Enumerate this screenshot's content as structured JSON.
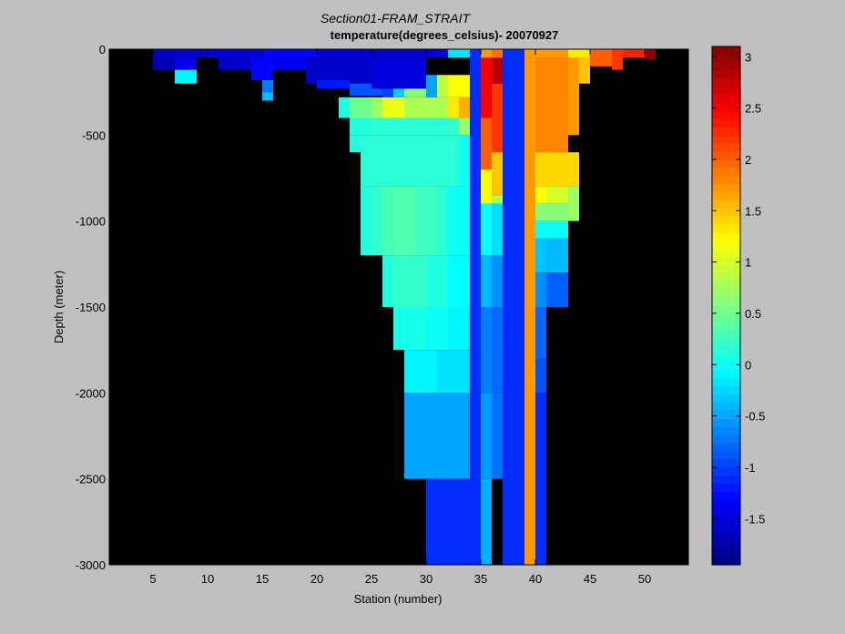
{
  "chart_data": {
    "type": "heatmap",
    "title": "Section01-FRAM_STRAIT",
    "subtitle": "temperature(degrees_celsius)- 20070927",
    "xlabel": "Station (number)",
    "ylabel": "Depth (meter)",
    "xlim": [
      1,
      54
    ],
    "ylim": [
      -3000,
      0
    ],
    "xticks": [
      5,
      10,
      15,
      20,
      25,
      30,
      35,
      40,
      45,
      50
    ],
    "yticks": [
      0,
      -500,
      -1000,
      -1500,
      -2000,
      -2500,
      -3000
    ],
    "colorbar": {
      "min": -1.95,
      "max": 3.1,
      "ticks": [
        3,
        2.5,
        2,
        1.5,
        1,
        0.5,
        0,
        -0.5,
        -1,
        -1.5
      ],
      "tick_labels": [
        "3",
        "2.5",
        "2",
        "1.5",
        "1",
        "0.5",
        "0",
        "-0.5",
        "-1",
        "-1.5"
      ]
    },
    "background_color": "#000000",
    "cells": [
      {
        "x0": 5,
        "x1": 10,
        "y0": -50,
        "y1": 0,
        "v": -1.6
      },
      {
        "x0": 10,
        "x1": 15,
        "y0": -50,
        "y1": 0,
        "v": -1.5
      },
      {
        "x0": 15,
        "x1": 20,
        "y0": -50,
        "y1": 0,
        "v": -1.3
      },
      {
        "x0": 20,
        "x1": 25,
        "y0": -50,
        "y1": 0,
        "v": -1.5
      },
      {
        "x0": 25,
        "x1": 30,
        "y0": -50,
        "y1": 0,
        "v": -1.6
      },
      {
        "x0": 30,
        "x1": 32,
        "y0": -50,
        "y1": 0,
        "v": -1.5
      },
      {
        "x0": 32,
        "x1": 34,
        "y0": -50,
        "y1": 0,
        "v": -0.2
      },
      {
        "x0": 36,
        "x1": 37,
        "y0": -50,
        "y1": 0,
        "v": 1.9
      },
      {
        "x0": 39,
        "x1": 43,
        "y0": -50,
        "y1": 0,
        "v": 1.7
      },
      {
        "x0": 43,
        "x1": 45,
        "y0": -50,
        "y1": 0,
        "v": 1.3
      },
      {
        "x0": 45,
        "x1": 47,
        "y0": -100,
        "y1": 0,
        "v": 2.0
      },
      {
        "x0": 47,
        "x1": 48,
        "y0": -120,
        "y1": 0,
        "v": 2.2
      },
      {
        "x0": 48,
        "x1": 50,
        "y0": -50,
        "y1": 0,
        "v": 2.3
      },
      {
        "x0": 50,
        "x1": 51,
        "y0": -60,
        "y1": 0,
        "v": 3.0
      },
      {
        "x0": 5,
        "x1": 7,
        "y0": -120,
        "y1": -50,
        "v": -1.7
      },
      {
        "x0": 7,
        "x1": 9,
        "y0": -120,
        "y1": -50,
        "v": -1.4
      },
      {
        "x0": 7,
        "x1": 9,
        "y0": -200,
        "y1": -120,
        "v": -0.1
      },
      {
        "x0": 11,
        "x1": 14,
        "y0": -120,
        "y1": -50,
        "v": -1.6
      },
      {
        "x0": 14,
        "x1": 16,
        "y0": -180,
        "y1": -50,
        "v": -1.3
      },
      {
        "x0": 15,
        "x1": 16,
        "y0": -250,
        "y1": -180,
        "v": -0.7
      },
      {
        "x0": 15,
        "x1": 16,
        "y0": -300,
        "y1": -250,
        "v": -0.4
      },
      {
        "x0": 16,
        "x1": 19,
        "y0": -120,
        "y1": -50,
        "v": -1.4
      },
      {
        "x0": 19,
        "x1": 25,
        "y0": -200,
        "y1": -50,
        "v": -1.6
      },
      {
        "x0": 20,
        "x1": 23,
        "y0": -230,
        "y1": -180,
        "v": -1.2
      },
      {
        "x0": 23,
        "x1": 26,
        "y0": -270,
        "y1": -200,
        "v": -0.9
      },
      {
        "x0": 25,
        "x1": 30,
        "y0": -230,
        "y1": -50,
        "v": -1.5
      },
      {
        "x0": 26,
        "x1": 27,
        "y0": -280,
        "y1": -230,
        "v": -1.0
      },
      {
        "x0": 27,
        "x1": 28,
        "y0": -280,
        "y1": -230,
        "v": -0.3
      },
      {
        "x0": 28,
        "x1": 30,
        "y0": -280,
        "y1": -230,
        "v": 0.6
      },
      {
        "x0": 30,
        "x1": 31,
        "y0": -280,
        "y1": -150,
        "v": -0.5
      },
      {
        "x0": 31,
        "x1": 32,
        "y0": -280,
        "y1": -150,
        "v": 0.9
      },
      {
        "x0": 32,
        "x1": 34,
        "y0": -280,
        "y1": -150,
        "v": 1.2
      },
      {
        "x0": 22,
        "x1": 23,
        "y0": -400,
        "y1": -280,
        "v": 0.1
      },
      {
        "x0": 23,
        "x1": 25,
        "y0": -400,
        "y1": -280,
        "v": 0.5
      },
      {
        "x0": 25,
        "x1": 26,
        "y0": -400,
        "y1": -280,
        "v": 0.7
      },
      {
        "x0": 26,
        "x1": 28,
        "y0": -400,
        "y1": -280,
        "v": 1.1
      },
      {
        "x0": 28,
        "x1": 32,
        "y0": -400,
        "y1": -280,
        "v": 0.8
      },
      {
        "x0": 32,
        "x1": 33,
        "y0": -400,
        "y1": -280,
        "v": 1.3
      },
      {
        "x0": 33,
        "x1": 34,
        "y0": -400,
        "y1": -280,
        "v": 1.6
      },
      {
        "x0": 33,
        "x1": 34,
        "y0": -500,
        "y1": -400,
        "v": 0.7
      },
      {
        "x0": 23,
        "x1": 25,
        "y0": -500,
        "y1": -400,
        "v": 0.1
      },
      {
        "x0": 25,
        "x1": 32,
        "y0": -500,
        "y1": -400,
        "v": 0.15
      },
      {
        "x0": 32,
        "x1": 33,
        "y0": -500,
        "y1": -400,
        "v": 0.2
      },
      {
        "x0": 23,
        "x1": 24,
        "y0": -600,
        "y1": -500,
        "v": 0.1
      },
      {
        "x0": 24,
        "x1": 33,
        "y0": -800,
        "y1": -500,
        "v": 0.15
      },
      {
        "x0": 33,
        "x1": 34,
        "y0": -800,
        "y1": -500,
        "v": 0.0
      },
      {
        "x0": 24,
        "x1": 25,
        "y0": -1200,
        "y1": -800,
        "v": 0.1
      },
      {
        "x0": 25,
        "x1": 26,
        "y0": -1200,
        "y1": -800,
        "v": 0.2
      },
      {
        "x0": 26,
        "x1": 27,
        "y0": -1200,
        "y1": -800,
        "v": 0.3
      },
      {
        "x0": 27,
        "x1": 29,
        "y0": -1200,
        "y1": -800,
        "v": 0.35
      },
      {
        "x0": 29,
        "x1": 31,
        "y0": -1200,
        "y1": -800,
        "v": 0.25
      },
      {
        "x0": 31,
        "x1": 32,
        "y0": -1200,
        "y1": -800,
        "v": 0.15
      },
      {
        "x0": 32,
        "x1": 34,
        "y0": -1200,
        "y1": -800,
        "v": 0.0
      },
      {
        "x0": 26,
        "x1": 27,
        "y0": -1500,
        "y1": -1200,
        "v": 0.1
      },
      {
        "x0": 27,
        "x1": 30,
        "y0": -1500,
        "y1": -1200,
        "v": 0.2
      },
      {
        "x0": 30,
        "x1": 32,
        "y0": -1500,
        "y1": -1200,
        "v": 0.1
      },
      {
        "x0": 32,
        "x1": 34,
        "y0": -1500,
        "y1": -1200,
        "v": -0.05
      },
      {
        "x0": 27,
        "x1": 30,
        "y0": -1750,
        "y1": -1500,
        "v": 0.05
      },
      {
        "x0": 30,
        "x1": 32,
        "y0": -1750,
        "y1": -1500,
        "v": 0.0
      },
      {
        "x0": 32,
        "x1": 34,
        "y0": -1750,
        "y1": -1500,
        "v": -0.1
      },
      {
        "x0": 28,
        "x1": 31,
        "y0": -2000,
        "y1": -1750,
        "v": -0.1
      },
      {
        "x0": 31,
        "x1": 34,
        "y0": -2000,
        "y1": -1750,
        "v": -0.2
      },
      {
        "x0": 28,
        "x1": 34,
        "y0": -2500,
        "y1": -2000,
        "v": -0.5
      },
      {
        "x0": 30,
        "x1": 34,
        "y0": -3000,
        "y1": -2500,
        "v": -1.1
      },
      {
        "x0": 34,
        "x1": 35,
        "y0": -3000,
        "y1": 0,
        "v": -1.1
      },
      {
        "x0": 35,
        "x1": 36,
        "y0": -50,
        "y1": 0,
        "v": 1.7
      },
      {
        "x0": 35,
        "x1": 36,
        "y0": -400,
        "y1": -50,
        "v": 2.5
      },
      {
        "x0": 35,
        "x1": 36,
        "y0": -700,
        "y1": -400,
        "v": 2.0
      },
      {
        "x0": 35,
        "x1": 36,
        "y0": -900,
        "y1": -700,
        "v": 1.2
      },
      {
        "x0": 35,
        "x1": 36,
        "y0": -1200,
        "y1": -900,
        "v": 0.0
      },
      {
        "x0": 35,
        "x1": 36,
        "y0": -1500,
        "y1": -1200,
        "v": -0.4
      },
      {
        "x0": 35,
        "x1": 36,
        "y0": -2000,
        "y1": -1500,
        "v": -0.7
      },
      {
        "x0": 35,
        "x1": 36,
        "y0": -2500,
        "y1": -2000,
        "v": -0.55
      },
      {
        "x0": 35,
        "x1": 36,
        "y0": -3000,
        "y1": -2500,
        "v": -0.45
      },
      {
        "x0": 36,
        "x1": 37,
        "y0": -200,
        "y1": -50,
        "v": 2.8
      },
      {
        "x0": 36,
        "x1": 37,
        "y0": -600,
        "y1": -200,
        "v": 2.2
      },
      {
        "x0": 36,
        "x1": 37,
        "y0": -850,
        "y1": -600,
        "v": 1.5
      },
      {
        "x0": 36,
        "x1": 37,
        "y0": -900,
        "y1": -850,
        "v": 0.8
      },
      {
        "x0": 36,
        "x1": 37,
        "y0": -1200,
        "y1": -900,
        "v": -0.2
      },
      {
        "x0": 36,
        "x1": 37,
        "y0": -1500,
        "y1": -1200,
        "v": -0.6
      },
      {
        "x0": 36,
        "x1": 37,
        "y0": -2000,
        "y1": -1500,
        "v": -0.8
      },
      {
        "x0": 36,
        "x1": 37,
        "y0": -2500,
        "y1": -2000,
        "v": -0.75
      },
      {
        "x0": 37,
        "x1": 39,
        "y0": -3000,
        "y1": 0,
        "v": -1.1
      },
      {
        "x0": 39,
        "x1": 40,
        "y0": -3000,
        "y1": -50,
        "v": 1.7
      },
      {
        "x0": 40,
        "x1": 43,
        "y0": -600,
        "y1": -50,
        "v": 1.8
      },
      {
        "x0": 43,
        "x1": 44,
        "y0": -500,
        "y1": -50,
        "v": 1.7
      },
      {
        "x0": 44,
        "x1": 45,
        "y0": -200,
        "y1": -50,
        "v": 1.5
      },
      {
        "x0": 40,
        "x1": 44,
        "y0": -800,
        "y1": -600,
        "v": 1.4
      },
      {
        "x0": 40,
        "x1": 41,
        "y0": -900,
        "y1": -800,
        "v": 1.2
      },
      {
        "x0": 41,
        "x1": 43,
        "y0": -900,
        "y1": -800,
        "v": 1.0
      },
      {
        "x0": 43,
        "x1": 44,
        "y0": -1000,
        "y1": -800,
        "v": 0.7
      },
      {
        "x0": 40,
        "x1": 43,
        "y0": -1000,
        "y1": -900,
        "v": 0.6
      },
      {
        "x0": 40,
        "x1": 43,
        "y0": -1100,
        "y1": -1000,
        "v": 0.0
      },
      {
        "x0": 40,
        "x1": 41,
        "y0": -1300,
        "y1": -1100,
        "v": -0.35
      },
      {
        "x0": 41,
        "x1": 43,
        "y0": -1300,
        "y1": -1100,
        "v": -0.4
      },
      {
        "x0": 40,
        "x1": 41,
        "y0": -1500,
        "y1": -1300,
        "v": -0.6
      },
      {
        "x0": 41,
        "x1": 43,
        "y0": -1500,
        "y1": -1300,
        "v": -0.85
      },
      {
        "x0": 40,
        "x1": 41,
        "y0": -1800,
        "y1": -1500,
        "v": -0.8
      },
      {
        "x0": 40,
        "x1": 41,
        "y0": -2000,
        "y1": -1800,
        "v": -0.9
      },
      {
        "x0": 40,
        "x1": 41,
        "y0": -3000,
        "y1": -2000,
        "v": -1.1
      }
    ]
  }
}
